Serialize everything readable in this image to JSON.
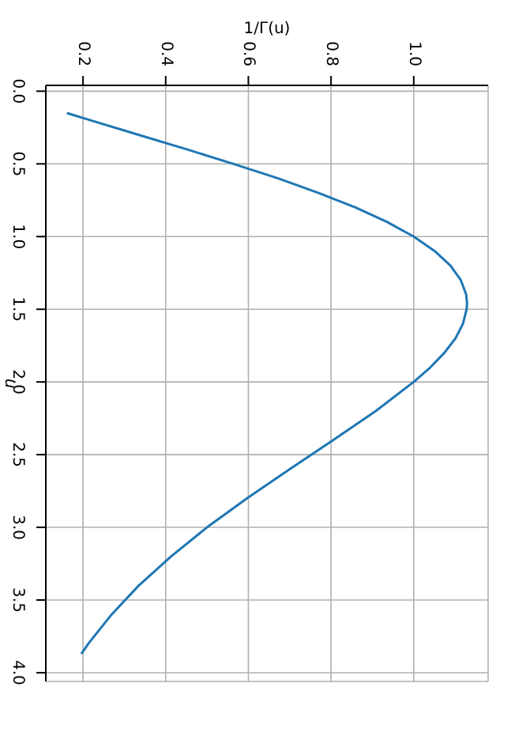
{
  "chart_data": {
    "type": "line",
    "xlabel": "1/Γ(u)",
    "ylabel": "u",
    "x": [
      0.161,
      0.218,
      0.334,
      0.451,
      0.564,
      0.672,
      0.77,
      0.859,
      0.936,
      1.0,
      1.051,
      1.089,
      1.114,
      1.127,
      1.129,
      1.128,
      1.119,
      1.101,
      1.074,
      1.04,
      1.0,
      0.908,
      0.805,
      0.7,
      0.597,
      0.5,
      0.413,
      0.335,
      0.269,
      0.213,
      0.196
    ],
    "series": [
      {
        "color": "#1f77b4",
        "values": [
          0.15,
          0.2,
          0.3,
          0.4,
          0.5,
          0.6,
          0.7,
          0.8,
          0.9,
          1.0,
          1.1,
          1.2,
          1.3,
          1.4,
          1.46,
          1.5,
          1.6,
          1.7,
          1.8,
          1.9,
          2.0,
          2.2,
          2.4,
          2.6,
          2.8,
          3.0,
          3.2,
          3.4,
          3.6,
          3.8,
          3.87
        ]
      }
    ],
    "ylim": [
      4.06,
      -0.04
    ],
    "yticks": [
      {
        "value": 0,
        "label": "0.0"
      },
      {
        "value": 0.5,
        "label": "0.5"
      },
      {
        "value": 1,
        "label": "1.0"
      },
      {
        "value": 1.5,
        "label": "1.5"
      },
      {
        "value": 2,
        "label": "2.0"
      },
      {
        "value": 2.5,
        "label": "2.5"
      },
      {
        "value": 3,
        "label": "3.0"
      },
      {
        "value": 3.5,
        "label": "3.5"
      },
      {
        "value": 4,
        "label": "4.0"
      }
    ],
    "xlim": [
      0.11,
      1.18
    ],
    "xticks": [
      {
        "value": 0.2,
        "label": "0.2"
      },
      {
        "value": 0.4,
        "label": "0.4"
      },
      {
        "value": 0.6,
        "label": "0.6"
      },
      {
        "value": 0.8,
        "label": "0.8"
      },
      {
        "value": 1.0,
        "label": "1.0"
      }
    ],
    "grid": true
  }
}
